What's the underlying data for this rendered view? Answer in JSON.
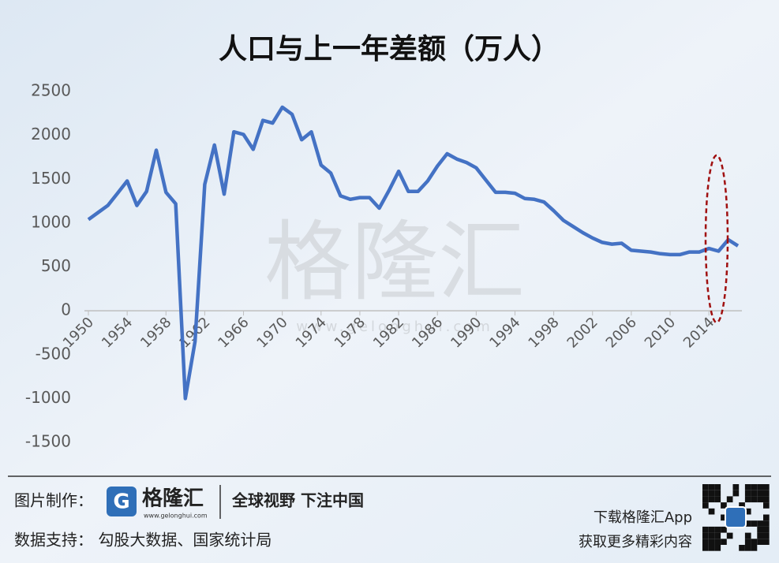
{
  "chart_data": {
    "type": "line",
    "title": "人口与上一年差额（万人）",
    "watermark": "格隆汇",
    "watermark_url": "www.gelonghui.com",
    "x": [
      1950,
      1951,
      1952,
      1953,
      1954,
      1955,
      1956,
      1957,
      1958,
      1959,
      1960,
      1961,
      1962,
      1963,
      1964,
      1965,
      1966,
      1967,
      1968,
      1969,
      1970,
      1971,
      1972,
      1973,
      1974,
      1975,
      1976,
      1977,
      1978,
      1979,
      1980,
      1981,
      1982,
      1983,
      1984,
      1985,
      1986,
      1987,
      1988,
      1989,
      1990,
      1991,
      1992,
      1993,
      1994,
      1995,
      1996,
      1997,
      1998,
      1999,
      2000,
      2001,
      2002,
      2003,
      2004,
      2005,
      2006,
      2007,
      2008,
      2009,
      2010,
      2011,
      2012,
      2013,
      2014,
      2015,
      2016,
      2017
    ],
    "values": [
      1040,
      1120,
      1200,
      1340,
      1480,
      1200,
      1360,
      1830,
      1350,
      1220,
      -1000,
      -350,
      1440,
      1890,
      1330,
      2040,
      2010,
      1840,
      2170,
      2140,
      2320,
      2240,
      1950,
      2040,
      1660,
      1570,
      1310,
      1270,
      1290,
      1290,
      1170,
      1370,
      1590,
      1360,
      1360,
      1480,
      1650,
      1790,
      1730,
      1690,
      1630,
      1490,
      1350,
      1350,
      1340,
      1280,
      1270,
      1240,
      1140,
      1030,
      960,
      890,
      830,
      780,
      760,
      770,
      690,
      680,
      670,
      650,
      640,
      640,
      670,
      670,
      710,
      680,
      810,
      740
    ],
    "color": "#4472c4",
    "xlim": [
      1950,
      2017
    ],
    "xticks": [
      1950,
      1954,
      1958,
      1962,
      1966,
      1970,
      1974,
      1978,
      1982,
      1986,
      1990,
      1994,
      1998,
      2002,
      2006,
      2010,
      2014
    ],
    "ylim": [
      -1500,
      2500
    ],
    "yticks": [
      2500,
      2000,
      1500,
      1000,
      500,
      0,
      -500,
      -1000,
      -1500
    ],
    "grid": false
  },
  "footer": {
    "made_by_label": "图片制作：",
    "logo_text": "格隆汇",
    "logo_url": "www.gelonghui.com",
    "slogan": "全球视野 下注中国",
    "data_source": "数据支持： 勾股大数据、国家统计局",
    "app_line1": "下载格隆汇App",
    "app_line2": "获取更多精彩内容"
  }
}
